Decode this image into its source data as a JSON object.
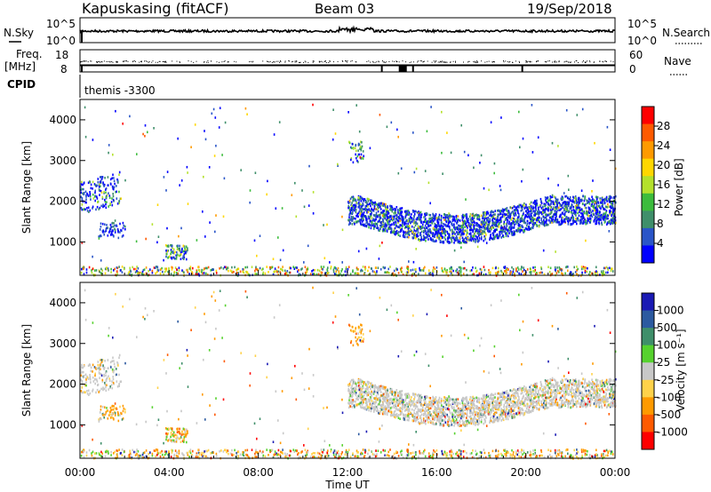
{
  "header": {
    "station": "Kapuskasing (fitACF)",
    "beam": "Beam 03",
    "date": "19/Sep/2018"
  },
  "top_panels": {
    "nsky_label": "N.Sky",
    "nsearch_label": "N.Search",
    "freq_label_1": "Freq.",
    "freq_label_2": "[MHz]",
    "nave_label": "Nave",
    "cpid_label": "CPID",
    "cpid_value": "themis -3300",
    "noise_ticks_left": [
      "10^5",
      "10^0"
    ],
    "noise_ticks_right": [
      "10^5",
      "10^0"
    ],
    "freq_ticks": [
      "18",
      "8"
    ],
    "nave_ticks": [
      "60",
      "0"
    ]
  },
  "chart_data": [
    {
      "type": "heatmap",
      "name": "power",
      "ylabel": "Slant Range [km]",
      "ylim": [
        180,
        4500
      ],
      "yticks": [
        "1000",
        "2000",
        "3000",
        "4000"
      ],
      "colorbar_label": "Power [dB]",
      "colorbar_ticks": [
        "4",
        "8",
        "12",
        "16",
        "20",
        "24",
        "28"
      ],
      "colorbar_range": [
        0,
        32
      ],
      "colorbar_colors": [
        "#0000ff",
        "#2a55c8",
        "#3f8f6a",
        "#3cbc3c",
        "#b4e12c",
        "#ffd700",
        "#ff9a00",
        "#ff5a00",
        "#ff0000"
      ]
    },
    {
      "type": "heatmap",
      "name": "velocity",
      "ylabel": "Slant Range [km]",
      "ylim": [
        180,
        4500
      ],
      "yticks": [
        "1000",
        "2000",
        "3000",
        "4000"
      ],
      "colorbar_label": "Velocity [m s⁻¹]",
      "colorbar_ticks": [
        "1000",
        "500",
        "100",
        "25",
        "-25",
        "-100",
        "-500",
        "-1000"
      ],
      "colorbar_colors": [
        "#1a1ab4",
        "#2c5aa0",
        "#3f8f6a",
        "#56d22e",
        "#c8c8c8",
        "#ffd24a",
        "#ff9a00",
        "#ff5a00",
        "#ff0000"
      ]
    }
  ],
  "xaxis": {
    "ticks": [
      "00:00",
      "04:00",
      "08:00",
      "12:00",
      "16:00",
      "20:00",
      "00:00"
    ],
    "label": "Time UT"
  }
}
